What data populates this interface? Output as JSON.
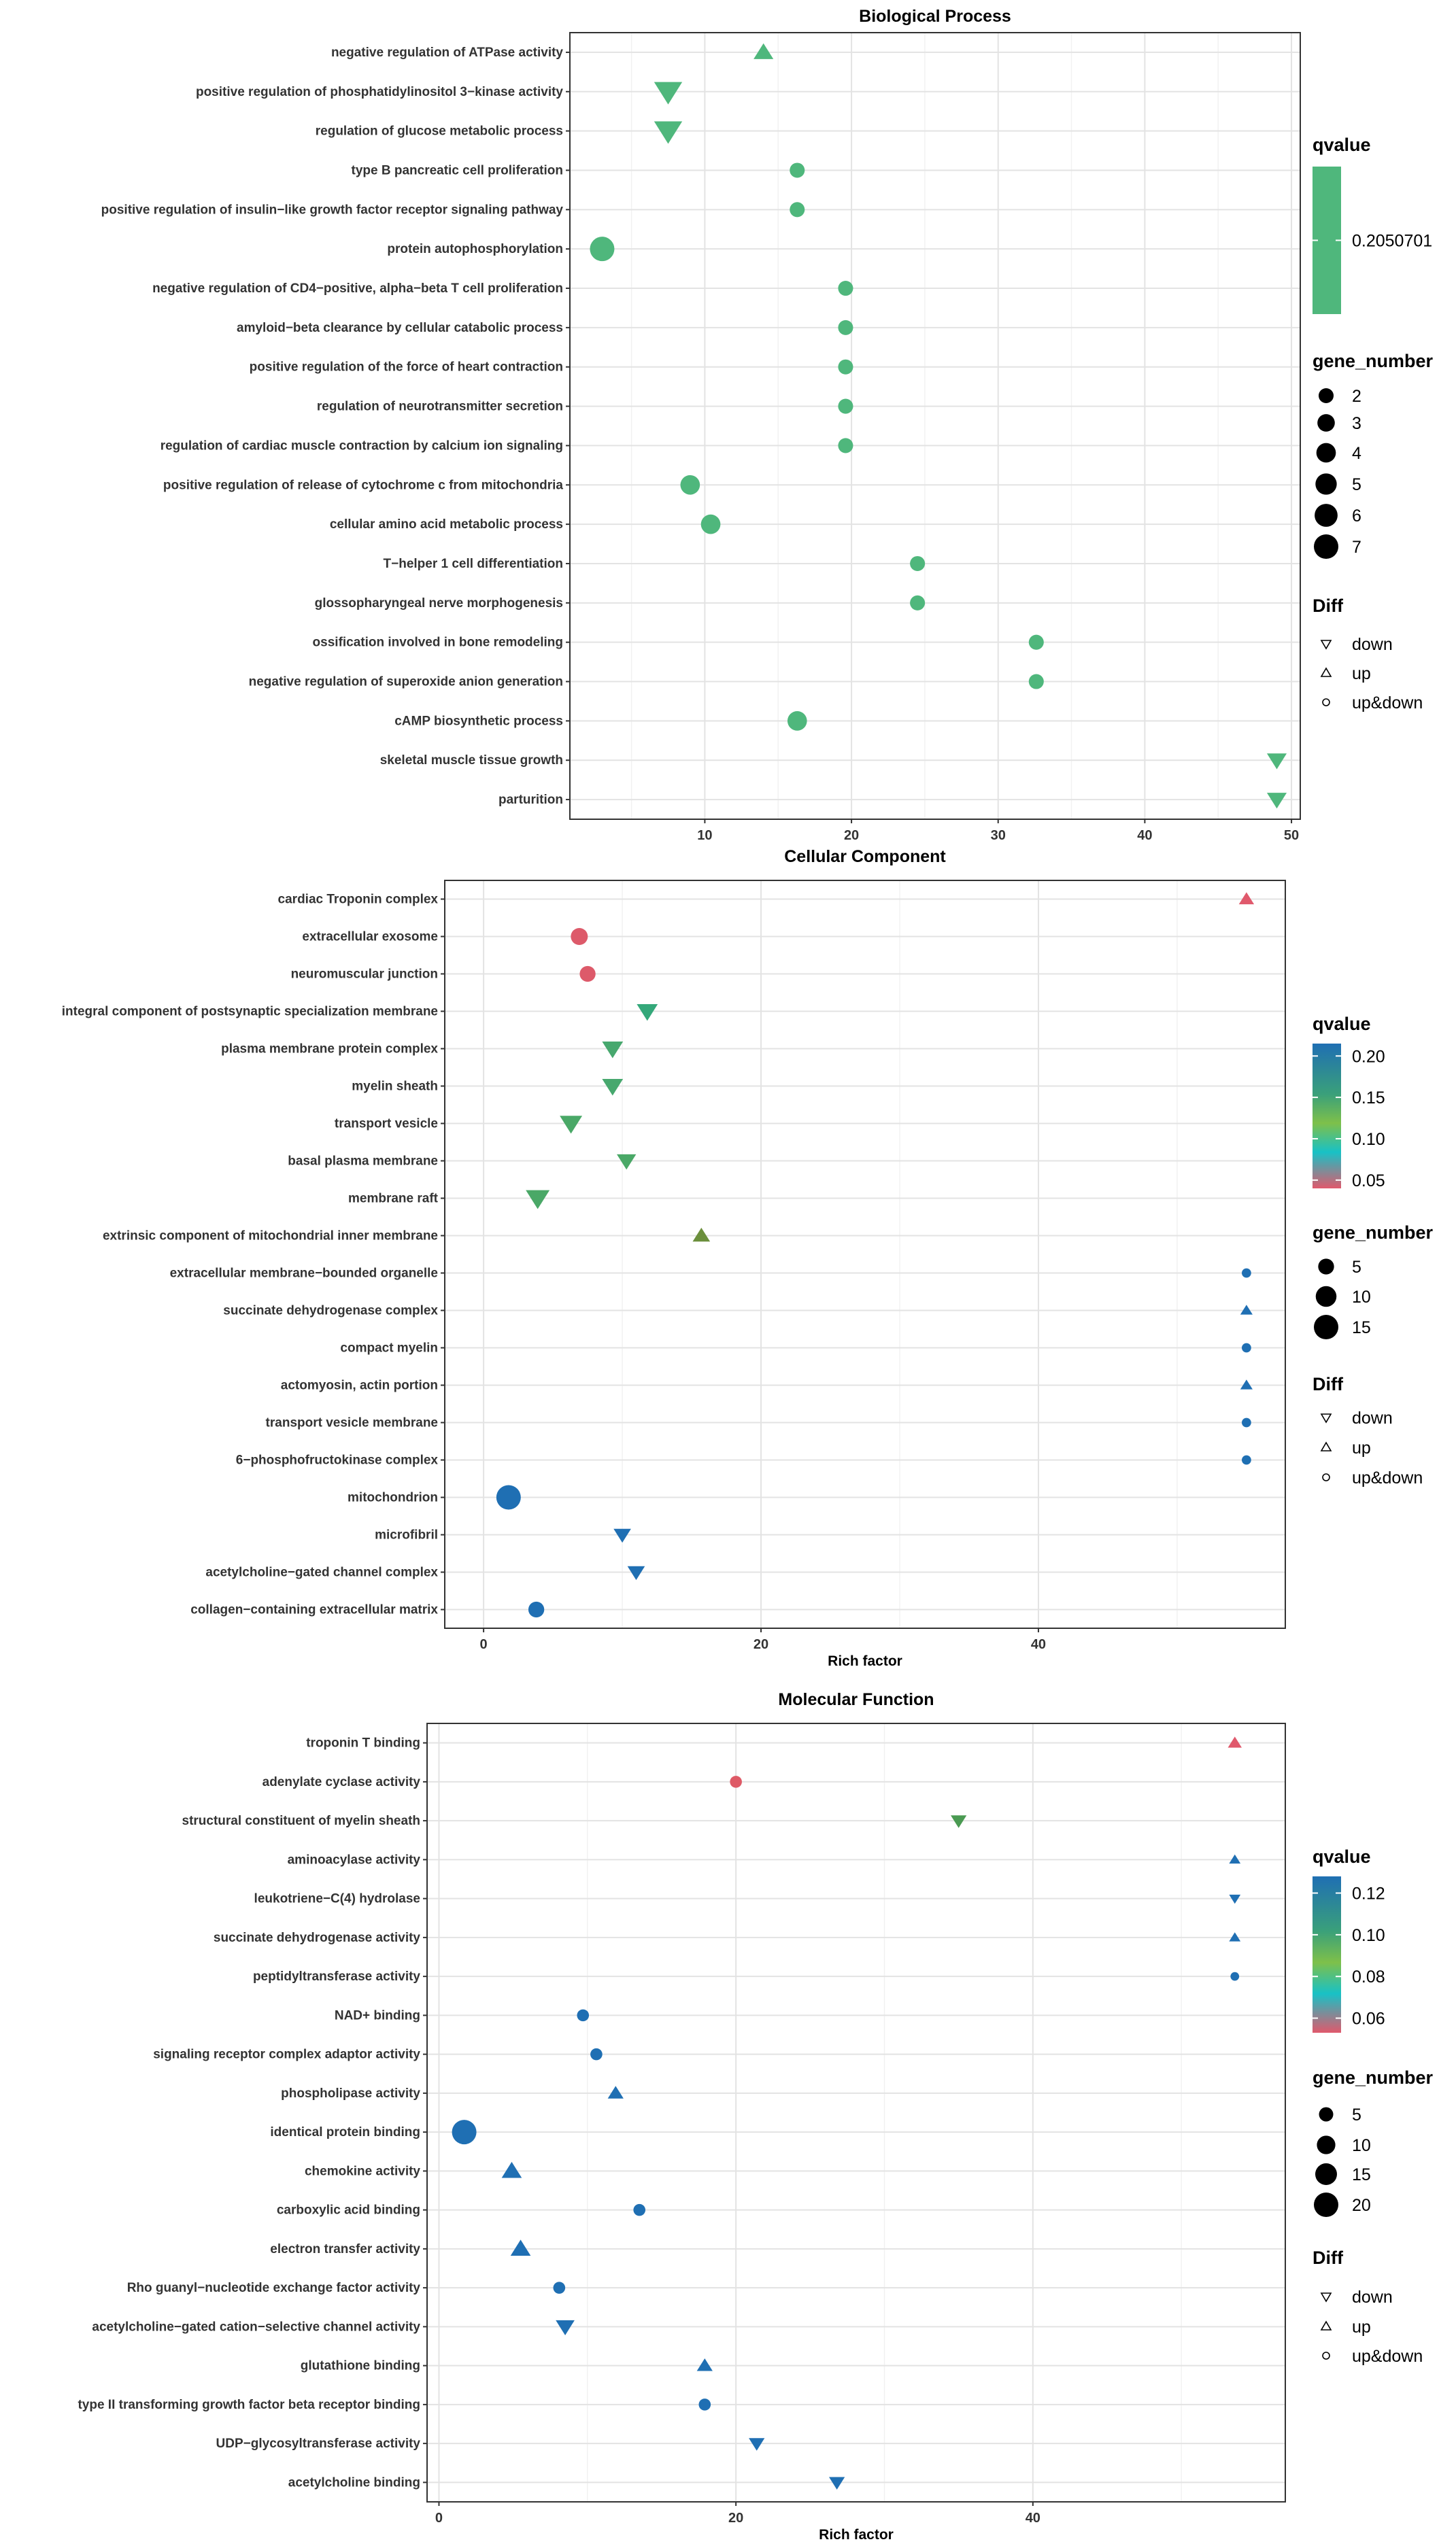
{
  "chart_data": [
    {
      "type": "scatter",
      "title": "Biological Process",
      "xlabel": "",
      "xlim": [
        0.8,
        50.6
      ],
      "xticks": [
        10,
        20,
        30,
        40,
        50
      ],
      "legend_position": "right",
      "qvalue_legend": {
        "title": "qvalue",
        "labels": [
          "0.2050701"
        ],
        "values": [
          0.2050701
        ]
      },
      "size_legend": {
        "title": "gene_number",
        "labels": [
          "2",
          "3",
          "4",
          "5",
          "6",
          "7"
        ],
        "values": [
          2,
          3,
          4,
          5,
          6,
          7
        ]
      },
      "diff_legend": {
        "title": "Diff",
        "labels": [
          "down",
          "up",
          "up&down"
        ]
      },
      "points": [
        {
          "term": "negative regulation of ATPase activity",
          "rich": 14.0,
          "genes": 2,
          "diff": "up",
          "color": "#4fb77c"
        },
        {
          "term": "positive regulation of phosphatidylinositol 3−kinase activity",
          "rich": 7.5,
          "genes": 5,
          "diff": "down",
          "color": "#4fb77c"
        },
        {
          "term": "regulation of glucose metabolic process",
          "rich": 7.5,
          "genes": 5,
          "diff": "down",
          "color": "#4fb77c"
        },
        {
          "term": "type B pancreatic cell proliferation",
          "rich": 16.3,
          "genes": 2,
          "diff": "up&down",
          "color": "#4fb77c"
        },
        {
          "term": "positive regulation of insulin−like growth factor receptor signaling pathway",
          "rich": 16.3,
          "genes": 2,
          "diff": "up&down",
          "color": "#4fb77c"
        },
        {
          "term": "protein autophosphorylation",
          "rich": 3.0,
          "genes": 7,
          "diff": "up&down",
          "color": "#4fb77c"
        },
        {
          "term": "negative regulation of CD4−positive, alpha−beta T cell proliferation",
          "rich": 19.6,
          "genes": 2,
          "diff": "up&down",
          "color": "#4fb77c"
        },
        {
          "term": "amyloid−beta clearance by cellular catabolic process",
          "rich": 19.6,
          "genes": 2,
          "diff": "up&down",
          "color": "#4fb77c"
        },
        {
          "term": "positive regulation of the force of heart contraction",
          "rich": 19.6,
          "genes": 2,
          "diff": "up&down",
          "color": "#4fb77c"
        },
        {
          "term": "regulation of neurotransmitter secretion",
          "rich": 19.6,
          "genes": 2,
          "diff": "up&down",
          "color": "#4fb77c"
        },
        {
          "term": "regulation of cardiac muscle contraction by calcium ion signaling",
          "rich": 19.6,
          "genes": 2,
          "diff": "up&down",
          "color": "#4fb77c"
        },
        {
          "term": "positive regulation of release of cytochrome c from mitochondria",
          "rich": 9.0,
          "genes": 4,
          "diff": "up&down",
          "color": "#4fb77c"
        },
        {
          "term": "cellular amino acid metabolic process",
          "rich": 10.4,
          "genes": 4,
          "diff": "up&down",
          "color": "#4fb77c"
        },
        {
          "term": "T−helper 1 cell differentiation",
          "rich": 24.5,
          "genes": 2,
          "diff": "up&down",
          "color": "#4fb77c"
        },
        {
          "term": "glossopharyngeal nerve morphogenesis",
          "rich": 24.5,
          "genes": 2,
          "diff": "up&down",
          "color": "#4fb77c"
        },
        {
          "term": "ossification involved in bone remodeling",
          "rich": 32.6,
          "genes": 2,
          "diff": "up&down",
          "color": "#4fb77c"
        },
        {
          "term": "negative regulation of superoxide anion generation",
          "rich": 32.6,
          "genes": 2,
          "diff": "up&down",
          "color": "#4fb77c"
        },
        {
          "term": "cAMP biosynthetic process",
          "rich": 16.3,
          "genes": 4,
          "diff": "up&down",
          "color": "#4fb77c"
        },
        {
          "term": "skeletal muscle tissue growth",
          "rich": 49.0,
          "genes": 2,
          "diff": "down",
          "color": "#4fb77c"
        },
        {
          "term": "parturition",
          "rich": 49.0,
          "genes": 2,
          "diff": "down",
          "color": "#4fb77c"
        }
      ]
    },
    {
      "type": "scatter",
      "title": "Cellular Component",
      "xlabel": "Rich factor",
      "xlim": [
        -2.8,
        57.8
      ],
      "xticks": [
        0,
        20,
        40
      ],
      "legend_position": "right",
      "qvalue_legend": {
        "title": "qvalue",
        "labels": [
          "0.20",
          "0.15",
          "0.10",
          "0.05"
        ],
        "values": [
          0.2,
          0.15,
          0.1,
          0.05
        ],
        "range": [
          0.04,
          0.215
        ]
      },
      "size_legend": {
        "title": "gene_number",
        "labels": [
          "5",
          "10",
          "15"
        ],
        "values": [
          5,
          10,
          15
        ]
      },
      "diff_legend": {
        "title": "Diff",
        "labels": [
          "down",
          "up",
          "up&down"
        ]
      },
      "points": [
        {
          "term": "cardiac Troponin complex",
          "rich": 55.0,
          "genes": 2,
          "diff": "up",
          "color": "#e0596c"
        },
        {
          "term": "extracellular exosome",
          "rich": 6.9,
          "genes": 6,
          "diff": "up&down",
          "color": "#dd5a6a"
        },
        {
          "term": "neuromuscular junction",
          "rich": 7.5,
          "genes": 5,
          "diff": "up&down",
          "color": "#dd5a6a"
        },
        {
          "term": "integral component of postsynaptic specialization membrane",
          "rich": 11.8,
          "genes": 5,
          "diff": "down",
          "color": "#34a87a"
        },
        {
          "term": "plasma membrane protein complex",
          "rich": 9.3,
          "genes": 5,
          "diff": "down",
          "color": "#47a86e"
        },
        {
          "term": "myelin sheath",
          "rich": 9.3,
          "genes": 5,
          "diff": "down",
          "color": "#47a86e"
        },
        {
          "term": "transport vesicle",
          "rich": 6.3,
          "genes": 6,
          "diff": "down",
          "color": "#4aa867"
        },
        {
          "term": "basal plasma membrane",
          "rich": 10.3,
          "genes": 4,
          "diff": "down",
          "color": "#4aa867"
        },
        {
          "term": "membrane raft",
          "rich": 3.9,
          "genes": 7,
          "diff": "down",
          "color": "#4aa867"
        },
        {
          "term": "extrinsic component of mitochondrial inner membrane",
          "rich": 15.7,
          "genes": 3,
          "diff": "up",
          "color": "#6b8f3c"
        },
        {
          "term": "extracellular membrane−bounded organelle",
          "rich": 55.0,
          "genes": 1,
          "diff": "up&down",
          "color": "#1f6fb3"
        },
        {
          "term": "succinate dehydrogenase complex",
          "rich": 55.0,
          "genes": 1,
          "diff": "up",
          "color": "#1f6fb3"
        },
        {
          "term": "compact myelin",
          "rich": 55.0,
          "genes": 1,
          "diff": "up&down",
          "color": "#1f6fb3"
        },
        {
          "term": "actomyosin, actin portion",
          "rich": 55.0,
          "genes": 1,
          "diff": "up",
          "color": "#1f6fb3"
        },
        {
          "term": "transport vesicle membrane",
          "rich": 55.0,
          "genes": 1,
          "diff": "up&down",
          "color": "#1f6fb3"
        },
        {
          "term": "6−phosphofructokinase complex",
          "rich": 55.0,
          "genes": 1,
          "diff": "up&down",
          "color": "#1f6fb3"
        },
        {
          "term": "mitochondrion",
          "rich": 1.8,
          "genes": 15,
          "diff": "up&down",
          "color": "#1f6fb3"
        },
        {
          "term": "microfibril",
          "rich": 10.0,
          "genes": 3,
          "diff": "down",
          "color": "#1f6fb3"
        },
        {
          "term": "acetylcholine−gated channel complex",
          "rich": 11.0,
          "genes": 3,
          "diff": "down",
          "color": "#1f6fb3"
        },
        {
          "term": "collagen−containing extracellular matrix",
          "rich": 3.8,
          "genes": 5,
          "diff": "up&down",
          "color": "#1f6fb3"
        }
      ]
    },
    {
      "type": "scatter",
      "title": "Molecular Function",
      "xlabel": "Rich factor",
      "xlim": [
        -0.8,
        57.0
      ],
      "xticks": [
        0,
        20,
        40
      ],
      "legend_position": "right",
      "qvalue_legend": {
        "title": "qvalue",
        "labels": [
          "0.12",
          "0.10",
          "0.08",
          "0.06"
        ],
        "values": [
          0.12,
          0.1,
          0.08,
          0.06
        ],
        "range": [
          0.053,
          0.128
        ]
      },
      "size_legend": {
        "title": "gene_number",
        "labels": [
          "5",
          "10",
          "15",
          "20"
        ],
        "values": [
          5,
          10,
          15,
          20
        ]
      },
      "diff_legend": {
        "title": "Diff",
        "labels": [
          "down",
          "up",
          "up&down"
        ]
      },
      "points": [
        {
          "term": "troponin T binding",
          "rich": 53.6,
          "genes": 2,
          "diff": "up",
          "color": "#e0596c"
        },
        {
          "term": "adenylate cyclase activity",
          "rich": 20.0,
          "genes": 3,
          "diff": "up&down",
          "color": "#de5a66"
        },
        {
          "term": "structural constituent of myelin sheath",
          "rich": 35.0,
          "genes": 3,
          "diff": "down",
          "color": "#4a9a52"
        },
        {
          "term": "aminoacylase activity",
          "rich": 53.6,
          "genes": 1,
          "diff": "up",
          "color": "#1f6fb3"
        },
        {
          "term": "leukotriene−C(4) hydrolase",
          "rich": 53.6,
          "genes": 1,
          "diff": "down",
          "color": "#1f6fb3"
        },
        {
          "term": "succinate dehydrogenase activity",
          "rich": 53.6,
          "genes": 1,
          "diff": "up",
          "color": "#1f6fb3"
        },
        {
          "term": "peptidyltransferase activity",
          "rich": 53.6,
          "genes": 1,
          "diff": "up&down",
          "color": "#1f6fb3"
        },
        {
          "term": "NAD+ binding",
          "rich": 9.7,
          "genes": 3,
          "diff": "up&down",
          "color": "#1f6fb3"
        },
        {
          "term": "signaling receptor complex adaptor activity",
          "rich": 10.6,
          "genes": 3,
          "diff": "up&down",
          "color": "#1f6fb3"
        },
        {
          "term": "phospholipase activity",
          "rich": 11.9,
          "genes": 3,
          "diff": "up",
          "color": "#1f6fb3"
        },
        {
          "term": "identical protein binding",
          "rich": 1.7,
          "genes": 20,
          "diff": "up&down",
          "color": "#1f6fb3"
        },
        {
          "term": "chemokine activity",
          "rich": 4.9,
          "genes": 6,
          "diff": "up",
          "color": "#1f6fb3"
        },
        {
          "term": "carboxylic acid binding",
          "rich": 13.5,
          "genes": 3,
          "diff": "up&down",
          "color": "#1f6fb3"
        },
        {
          "term": "electron transfer activity",
          "rich": 5.5,
          "genes": 6,
          "diff": "up",
          "color": "#1f6fb3"
        },
        {
          "term": "Rho guanyl−nucleotide exchange factor activity",
          "rich": 8.1,
          "genes": 3,
          "diff": "up&down",
          "color": "#1f6fb3"
        },
        {
          "term": "acetylcholine−gated cation−selective channel activity",
          "rich": 8.5,
          "genes": 5,
          "diff": "down",
          "color": "#1f6fb3"
        },
        {
          "term": "glutathione binding",
          "rich": 17.9,
          "genes": 3,
          "diff": "up",
          "color": "#1f6fb3"
        },
        {
          "term": "type II transforming growth factor beta receptor binding",
          "rich": 17.9,
          "genes": 3,
          "diff": "up&down",
          "color": "#1f6fb3"
        },
        {
          "term": "UDP−glycosyltransferase activity",
          "rich": 21.4,
          "genes": 3,
          "diff": "down",
          "color": "#1f6fb3"
        },
        {
          "term": "acetylcholine binding",
          "rich": 26.8,
          "genes": 3,
          "diff": "down",
          "color": "#1f6fb3"
        }
      ]
    }
  ]
}
